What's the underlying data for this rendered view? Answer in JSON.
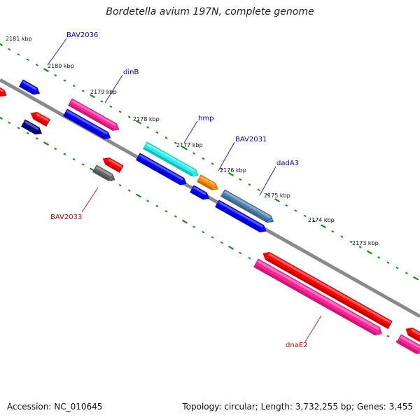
{
  "title": "Bordetella avium 197N, complete genome",
  "footer": {
    "accession": "Accession: NC_010645",
    "topology": "Topology: circular; Length: 3,732,255 bp; Genes: 3,455"
  },
  "kbp_labels": [
    "2181 kbp",
    "2180 kbp",
    "2179 kbp",
    "2178 kbp",
    "2177 kbp",
    "2176 kbp",
    "2175 kbp",
    "2174 kbp",
    "2173 kbp"
  ],
  "gene_labels": [
    {
      "id": "bav2036",
      "text": "BAV2036",
      "color": "#0000cc"
    },
    {
      "id": "dinb",
      "text": "dinB",
      "color": "#0000cc"
    },
    {
      "id": "hmp",
      "text": "hmp",
      "color": "#0000cc"
    },
    {
      "id": "bav2031",
      "text": "BAV2031",
      "color": "#0000cc"
    },
    {
      "id": "dada3",
      "text": "dadA3",
      "color": "#0000cc"
    },
    {
      "id": "bav2033",
      "text": "BAV2033",
      "color": "#cc0000"
    },
    {
      "id": "dnae2",
      "text": "dnaE2",
      "color": "#cc0000"
    }
  ],
  "colors": {
    "backbone": "#888888",
    "ticks": "#1a8a1a",
    "cds_forward": "#0000ff",
    "cds_reverse": "#ff0000",
    "gene_pink": "#ff2299",
    "gene_cyan": "#22eeee",
    "gene_orange": "#ff8800",
    "gene_steel": "#4f7fb0",
    "gene_navy": "#000088",
    "gene_gray": "#666666"
  }
}
